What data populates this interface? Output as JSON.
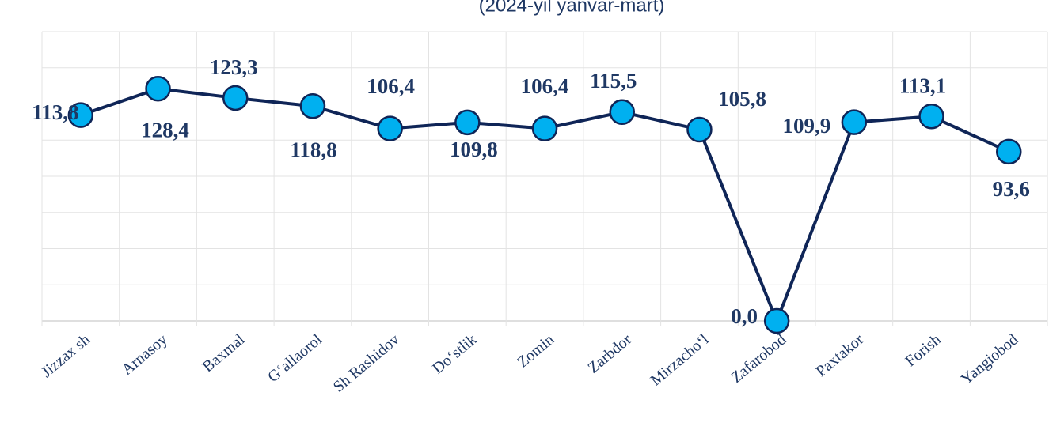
{
  "chart_data": {
    "type": "line",
    "subtitle": "(2024-yil yanvar-mart)",
    "categories": [
      "Jizzax sh",
      "Arnasoy",
      "Baxmal",
      "G‘allaorol",
      "Sh Rashidov",
      "Do‘stlik",
      "Zomin",
      "Zarbdor",
      "Mirzacho‘l",
      "Zafarobod",
      "Paxtakor",
      "Forish",
      "Yangiobod"
    ],
    "series": [
      {
        "name": null,
        "color": "#0f2557",
        "marker_color": "#00b0f0",
        "values": [
          113.8,
          128.4,
          123.3,
          118.8,
          106.4,
          109.8,
          106.4,
          115.5,
          105.8,
          0.0,
          109.9,
          113.1,
          93.6
        ],
        "value_labels": [
          "113,8",
          "128,4",
          "123,3",
          "118,8",
          "106,4",
          "109,8",
          "106,4",
          "115,5",
          "105,8",
          "0,0",
          "109,9",
          "113,1",
          "93,6"
        ]
      }
    ],
    "ylim": [
      0,
      160
    ],
    "yticks": [
      0,
      20,
      40,
      60,
      80,
      100,
      120,
      140,
      160
    ],
    "grid": true
  }
}
